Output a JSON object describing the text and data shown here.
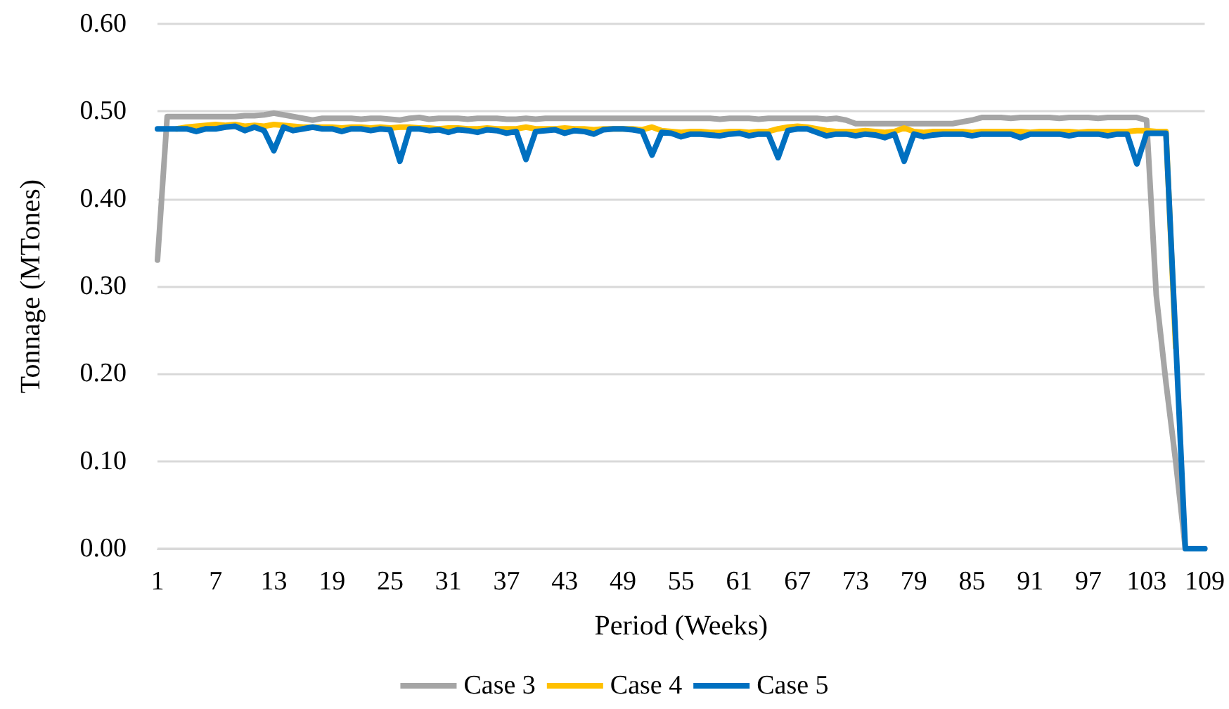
{
  "chart_data": {
    "type": "line",
    "xlabel": "Period (Weeks)",
    "ylabel": "Tonnage (MTones)",
    "categories": [
      "1",
      null,
      null,
      null,
      null,
      null,
      "7",
      null,
      null,
      null,
      null,
      null,
      "13",
      null,
      null,
      null,
      null,
      null,
      "19",
      null,
      null,
      null,
      null,
      null,
      "25",
      null,
      null,
      null,
      null,
      null,
      "31",
      null,
      null,
      null,
      null,
      null,
      "37",
      null,
      null,
      null,
      null,
      null,
      "43",
      null,
      null,
      null,
      null,
      null,
      "49",
      null,
      null,
      null,
      null,
      null,
      "55",
      null,
      null,
      null,
      null,
      null,
      "61",
      null,
      null,
      null,
      null,
      null,
      "67",
      null,
      null,
      null,
      null,
      null,
      "73",
      null,
      null,
      null,
      null,
      null,
      "79",
      null,
      null,
      null,
      null,
      null,
      "85",
      null,
      null,
      null,
      null,
      null,
      "91",
      null,
      null,
      null,
      null,
      null,
      "97",
      null,
      null,
      null,
      null,
      null,
      "103",
      null,
      null,
      null,
      null,
      null,
      "109"
    ],
    "series": [
      {
        "name": "Case 3",
        "color": "#a5a5a5",
        "values": [
          0.33,
          0.494,
          0.494,
          0.494,
          0.494,
          0.494,
          0.494,
          0.494,
          0.494,
          0.495,
          0.495,
          0.496,
          0.498,
          0.496,
          0.494,
          0.492,
          0.49,
          0.492,
          0.492,
          0.492,
          0.492,
          0.491,
          0.492,
          0.492,
          0.491,
          0.49,
          0.492,
          0.493,
          0.491,
          0.492,
          0.492,
          0.492,
          0.491,
          0.492,
          0.492,
          0.492,
          0.491,
          0.491,
          0.492,
          0.491,
          0.492,
          0.492,
          0.492,
          0.492,
          0.492,
          0.492,
          0.492,
          0.492,
          0.492,
          0.492,
          0.492,
          0.492,
          0.492,
          0.492,
          0.492,
          0.492,
          0.492,
          0.492,
          0.491,
          0.492,
          0.492,
          0.492,
          0.491,
          0.492,
          0.492,
          0.492,
          0.492,
          0.492,
          0.492,
          0.491,
          0.492,
          0.49,
          0.486,
          0.486,
          0.486,
          0.486,
          0.486,
          0.486,
          0.486,
          0.486,
          0.486,
          0.486,
          0.486,
          0.488,
          0.49,
          0.493,
          0.493,
          0.493,
          0.492,
          0.493,
          0.493,
          0.493,
          0.493,
          0.492,
          0.493,
          0.493,
          0.493,
          0.492,
          0.493,
          0.493,
          0.493,
          0.493,
          0.49,
          0.29,
          0.19,
          0.1,
          0,
          0,
          0
        ]
      },
      {
        "name": "Case 4",
        "color": "#ffc000",
        "values": [
          null,
          null,
          0.48,
          0.482,
          0.483,
          0.484,
          0.485,
          0.484,
          0.485,
          0.483,
          0.484,
          0.483,
          0.485,
          0.484,
          0.483,
          0.482,
          0.482,
          0.482,
          0.482,
          0.481,
          0.482,
          0.482,
          0.481,
          0.482,
          0.481,
          0.482,
          0.482,
          0.481,
          0.481,
          0.48,
          0.481,
          0.481,
          0.48,
          0.48,
          0.481,
          0.48,
          0.48,
          0.48,
          0.482,
          0.48,
          0.48,
          0.48,
          0.481,
          0.48,
          0.48,
          0.479,
          0.48,
          0.48,
          0.48,
          0.48,
          0.479,
          0.482,
          0.478,
          0.477,
          0.476,
          0.477,
          0.477,
          0.476,
          0.476,
          0.477,
          0.477,
          0.476,
          0.477,
          0.477,
          0.48,
          0.482,
          0.483,
          0.482,
          0.48,
          0.478,
          0.477,
          0.477,
          0.477,
          0.478,
          0.477,
          0.476,
          0.477,
          0.481,
          0.477,
          0.476,
          0.477,
          0.477,
          0.477,
          0.477,
          0.476,
          0.477,
          0.477,
          0.477,
          0.477,
          0.477,
          0.476,
          0.477,
          0.477,
          0.477,
          0.477,
          0.476,
          0.477,
          0.477,
          0.477,
          0.477,
          0.477,
          0.478,
          0.478,
          0.477,
          0.477,
          0.23,
          null,
          null,
          null
        ]
      },
      {
        "name": "Case 5",
        "color": "#0070c0",
        "values": [
          0.48,
          0.48,
          0.48,
          0.48,
          0.477,
          0.48,
          0.48,
          0.482,
          0.483,
          0.478,
          0.482,
          0.478,
          0.455,
          0.482,
          0.478,
          0.48,
          0.482,
          0.48,
          0.48,
          0.477,
          0.48,
          0.48,
          0.478,
          0.48,
          0.479,
          0.443,
          0.48,
          0.48,
          0.478,
          0.479,
          0.476,
          0.479,
          0.478,
          0.476,
          0.479,
          0.478,
          0.475,
          0.477,
          0.445,
          0.477,
          0.478,
          0.479,
          0.475,
          0.478,
          0.477,
          0.474,
          0.479,
          0.48,
          0.48,
          0.479,
          0.477,
          0.45,
          0.476,
          0.475,
          0.471,
          0.474,
          0.474,
          0.473,
          0.472,
          0.474,
          0.475,
          0.472,
          0.474,
          0.474,
          0.447,
          0.478,
          0.48,
          0.48,
          0.476,
          0.472,
          0.474,
          0.474,
          0.472,
          0.474,
          0.473,
          0.47,
          0.474,
          0.443,
          0.474,
          0.471,
          0.473,
          0.474,
          0.474,
          0.474,
          0.472,
          0.474,
          0.474,
          0.474,
          0.474,
          0.47,
          0.474,
          0.474,
          0.474,
          0.474,
          0.472,
          0.474,
          0.474,
          0.474,
          0.472,
          0.474,
          0.474,
          0.44,
          0.475,
          0.475,
          0.475,
          0.24,
          0,
          0,
          0
        ]
      }
    ],
    "ylim": [
      0,
      0.6
    ],
    "yticks": [
      {
        "value": 0,
        "label": "0.00"
      },
      {
        "value": 0.1,
        "label": "0.10"
      },
      {
        "value": 0.2,
        "label": "0.20"
      },
      {
        "value": 0.3,
        "label": "0.30"
      },
      {
        "value": 0.4,
        "label": "0.40"
      },
      {
        "value": 0.5,
        "label": "0.50"
      },
      {
        "value": 0.6,
        "label": "0.60"
      }
    ],
    "grid": "y",
    "legend": "bottom",
    "marker": "none",
    "line_style": "solid"
  }
}
